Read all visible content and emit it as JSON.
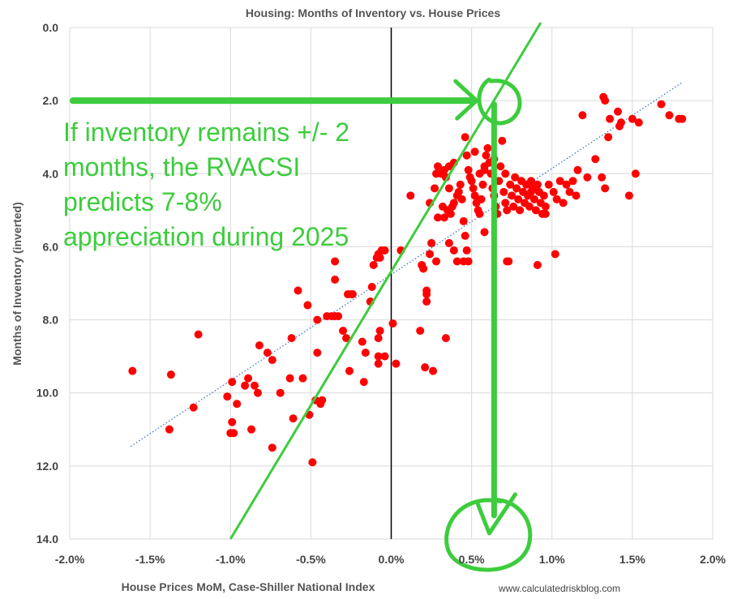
{
  "chart_data": {
    "type": "scatter",
    "title": "Housing: Months of Inventory vs. House Prices",
    "xlabel": "House Prices MoM, Case-Shiller National Index",
    "ylabel": "Months of Inventory (inverted)",
    "xlim": [
      -0.02,
      0.02
    ],
    "ylim": [
      14,
      0
    ],
    "y_inverted": true,
    "grid": true,
    "x_ticks": [
      -0.02,
      -0.015,
      -0.01,
      -0.005,
      0,
      0.005,
      0.01,
      0.015,
      0.02
    ],
    "x_tick_labels": [
      "-2.0%",
      "-1.5%",
      "-1.0%",
      "-0.5%",
      "0.0%",
      "0.5%",
      "1.0%",
      "1.5%",
      "2.0%"
    ],
    "y_ticks": [
      0,
      2,
      4,
      6,
      8,
      10,
      12,
      14
    ],
    "y_tick_labels": [
      "0.0",
      "2.0",
      "4.0",
      "6.0",
      "8.0",
      "10.0",
      "12.0",
      "14.0"
    ],
    "series": [
      {
        "color": "#ff0000",
        "points": [
          [
            -0.0161,
            9.4
          ],
          [
            -0.0137,
            9.5
          ],
          [
            -0.0138,
            11.0
          ],
          [
            -0.0123,
            10.4
          ],
          [
            -0.012,
            8.4
          ],
          [
            -0.0102,
            10.1
          ],
          [
            -0.0099,
            9.7
          ],
          [
            -0.0099,
            10.8
          ],
          [
            -0.01,
            11.1
          ],
          [
            -0.0098,
            11.1
          ],
          [
            -0.0096,
            10.3
          ],
          [
            -0.0091,
            9.8
          ],
          [
            -0.0089,
            9.6
          ],
          [
            -0.0087,
            11.0
          ],
          [
            -0.0085,
            9.8
          ],
          [
            -0.0083,
            10.0
          ],
          [
            -0.0082,
            8.7
          ],
          [
            -0.0077,
            8.9
          ],
          [
            -0.0074,
            9.1
          ],
          [
            -0.0074,
            11.5
          ],
          [
            -0.0069,
            10.0
          ],
          [
            -0.0063,
            9.6
          ],
          [
            -0.0061,
            10.7
          ],
          [
            -0.0062,
            8.5
          ],
          [
            -0.0058,
            7.2
          ],
          [
            -0.0055,
            9.6
          ],
          [
            -0.0052,
            7.6
          ],
          [
            -0.0051,
            10.6
          ],
          [
            -0.0049,
            11.9
          ],
          [
            -0.0047,
            10.2
          ],
          [
            -0.0046,
            8.9
          ],
          [
            -0.0046,
            8.0
          ],
          [
            -0.0044,
            10.3
          ],
          [
            -0.0043,
            10.2
          ],
          [
            -0.004,
            7.9
          ],
          [
            -0.0037,
            7.9
          ],
          [
            -0.0035,
            7.9
          ],
          [
            -0.0035,
            6.9
          ],
          [
            -0.0035,
            6.4
          ],
          [
            -0.0033,
            7.9
          ],
          [
            -0.003,
            8.3
          ],
          [
            -0.0028,
            8.5
          ],
          [
            -0.0027,
            7.3
          ],
          [
            -0.0025,
            7.3
          ],
          [
            -0.0024,
            7.3
          ],
          [
            -0.0026,
            9.4
          ],
          [
            -0.0018,
            8.6
          ],
          [
            -0.0017,
            9.7
          ],
          [
            -0.0016,
            8.9
          ],
          [
            -0.0013,
            7.5
          ],
          [
            -0.0012,
            7.1
          ],
          [
            -0.0011,
            6.5
          ],
          [
            -0.0009,
            6.3
          ],
          [
            -0.0008,
            6.2
          ],
          [
            -0.0007,
            6.3
          ],
          [
            -0.0006,
            6.1
          ],
          [
            -0.0004,
            6.1
          ],
          [
            -0.0008,
            9.2
          ],
          [
            -0.0008,
            9.0
          ],
          [
            -0.0008,
            8.5
          ],
          [
            -0.0007,
            8.3
          ],
          [
            -0.0004,
            9.0
          ],
          [
            0.0001,
            8.1
          ],
          [
            0.0003,
            9.2
          ],
          [
            0.0006,
            6.1
          ],
          [
            0.0012,
            4.6
          ],
          [
            0.0018,
            8.3
          ],
          [
            0.0019,
            6.5
          ],
          [
            0.002,
            6.6
          ],
          [
            0.0021,
            9.3
          ],
          [
            0.0022,
            7.3
          ],
          [
            0.0022,
            7.2
          ],
          [
            0.0022,
            7.5
          ],
          [
            0.0024,
            6.2
          ],
          [
            0.0025,
            5.9
          ],
          [
            0.0026,
            9.4
          ],
          [
            0.0028,
            6.4
          ],
          [
            0.0031,
            4.0
          ],
          [
            0.0032,
            4.9
          ],
          [
            0.0033,
            5.2
          ],
          [
            0.0035,
            5.0
          ],
          [
            0.0036,
            4.4
          ],
          [
            0.0037,
            5.1
          ],
          [
            0.0038,
            4.9
          ],
          [
            0.0039,
            4.8
          ],
          [
            0.0041,
            4.6
          ],
          [
            0.0042,
            4.5
          ],
          [
            0.0043,
            4.3
          ],
          [
            0.0044,
            4.7
          ],
          [
            0.0045,
            5.3
          ],
          [
            0.0046,
            5.7
          ],
          [
            0.0047,
            6.1
          ],
          [
            0.0048,
            6.4
          ],
          [
            0.0046,
            3.0
          ],
          [
            0.0047,
            3.5
          ],
          [
            0.0048,
            3.9
          ],
          [
            0.0049,
            4.1
          ],
          [
            0.005,
            4.2
          ],
          [
            0.0051,
            4.4
          ],
          [
            0.0052,
            4.6
          ],
          [
            0.0053,
            4.8
          ],
          [
            0.0054,
            5.0
          ],
          [
            0.0055,
            5.1
          ],
          [
            0.0056,
            4.7
          ],
          [
            0.0057,
            4.3
          ],
          [
            0.0058,
            3.9
          ],
          [
            0.0059,
            3.5
          ],
          [
            0.006,
            3.3
          ],
          [
            0.0061,
            3.7
          ],
          [
            0.0062,
            4.0
          ],
          [
            0.0063,
            4.4
          ],
          [
            0.0064,
            4.6
          ],
          [
            0.0065,
            4.9
          ],
          [
            0.0066,
            5.1
          ],
          [
            0.0067,
            4.2
          ],
          [
            0.0068,
            3.8
          ],
          [
            0.0069,
            3.1
          ],
          [
            0.007,
            4.5
          ],
          [
            0.0071,
            4.8
          ],
          [
            0.0072,
            5.0
          ],
          [
            0.0073,
            6.4
          ],
          [
            0.0074,
            4.3
          ],
          [
            0.0075,
            4.6
          ],
          [
            0.0076,
            4.9
          ],
          [
            0.0077,
            4.1
          ],
          [
            0.0078,
            4.4
          ],
          [
            0.0079,
            4.7
          ],
          [
            0.008,
            5.0
          ],
          [
            0.0081,
            4.2
          ],
          [
            0.0082,
            4.5
          ],
          [
            0.0083,
            4.8
          ],
          [
            0.0084,
            4.3
          ],
          [
            0.0085,
            4.6
          ],
          [
            0.0086,
            4.9
          ],
          [
            0.0087,
            4.2
          ],
          [
            0.0088,
            4.4
          ],
          [
            0.0089,
            4.7
          ],
          [
            0.009,
            5.0
          ],
          [
            0.0091,
            4.3
          ],
          [
            0.0092,
            4.5
          ],
          [
            0.0093,
            4.8
          ],
          [
            0.0094,
            5.1
          ],
          [
            0.0095,
            4.6
          ],
          [
            0.0096,
            4.9
          ],
          [
            0.0098,
            4.3
          ],
          [
            0.0101,
            4.5
          ],
          [
            0.0103,
            4.7
          ],
          [
            0.0105,
            4.2
          ],
          [
            0.0107,
            4.8
          ],
          [
            0.0109,
            4.3
          ],
          [
            0.0111,
            4.5
          ],
          [
            0.0113,
            4.2
          ],
          [
            0.0115,
            4.6
          ],
          [
            0.0116,
            3.9
          ],
          [
            0.0119,
            2.4
          ],
          [
            0.0122,
            4.1
          ],
          [
            0.0127,
            3.6
          ],
          [
            0.0131,
            4.1
          ],
          [
            0.0132,
            1.9
          ],
          [
            0.0133,
            2.0
          ],
          [
            0.0135,
            3.0
          ],
          [
            0.0136,
            2.5
          ],
          [
            0.0141,
            2.3
          ],
          [
            0.0143,
            2.6
          ],
          [
            0.0142,
            2.7
          ],
          [
            0.0148,
            4.6
          ],
          [
            0.015,
            2.5
          ],
          [
            0.0152,
            4.0
          ],
          [
            0.0154,
            2.6
          ],
          [
            0.0168,
            2.1
          ],
          [
            0.0173,
            2.4
          ],
          [
            0.0179,
            2.5
          ],
          [
            0.0181,
            2.5
          ],
          [
            0.0133,
            4.4
          ],
          [
            0.0102,
            6.2
          ],
          [
            0.0091,
            6.5
          ],
          [
            0.0072,
            6.4
          ],
          [
            0.0058,
            5.6
          ],
          [
            0.0045,
            6.4
          ],
          [
            0.0036,
            5.9
          ],
          [
            0.0029,
            5.2
          ],
          [
            0.0024,
            4.8
          ],
          [
            0.0033,
            3.9
          ],
          [
            0.0036,
            3.8
          ],
          [
            0.0039,
            3.7
          ],
          [
            0.0028,
            4.0
          ],
          [
            0.0029,
            3.8
          ],
          [
            0.0027,
            4.4
          ],
          [
            0.0034,
            4.1
          ],
          [
            0.0052,
            3.4
          ],
          [
            0.0058,
            3.8
          ],
          [
            0.0064,
            3.6
          ],
          [
            0.0055,
            4.0
          ],
          [
            0.0071,
            4.0
          ],
          [
            0.0087,
            4.5
          ],
          [
            0.0096,
            5.1
          ],
          [
            0.0034,
            8.5
          ],
          [
            0.0039,
            6.1
          ],
          [
            0.0041,
            6.4
          ]
        ]
      }
    ],
    "trendline": {
      "style": "dotted",
      "color": "#4472c4",
      "x_range": [
        -0.0162,
        0.0181
      ],
      "slope": -290.3,
      "intercept": 6.76
    },
    "annotations": [
      {
        "text_lines": [
          "If inventory remains +/- 2",
          "months, the RVACSI",
          "predicts 7-8%",
          "appreciation during 2025"
        ],
        "color": "#3dcc3d"
      }
    ],
    "overlay_lines": {
      "color": "#3dcc3d",
      "steep_line": {
        "from": [
          -0.01,
          14.0
        ],
        "to": [
          0.0093,
          0.0
        ]
      },
      "horizontal_arrow": {
        "from": [
          -0.0198,
          2.0
        ],
        "to": [
          0.0045,
          2.0
        ]
      },
      "vertical_arrow": {
        "from": [
          0.0064,
          2.1
        ],
        "to": [
          0.0064,
          14.0
        ]
      },
      "circle_top": [
        0.0068,
        2.0
      ],
      "circle_bottom": [
        0.0058,
        13.9
      ]
    },
    "source": "www.calculatedriskblog.com"
  }
}
